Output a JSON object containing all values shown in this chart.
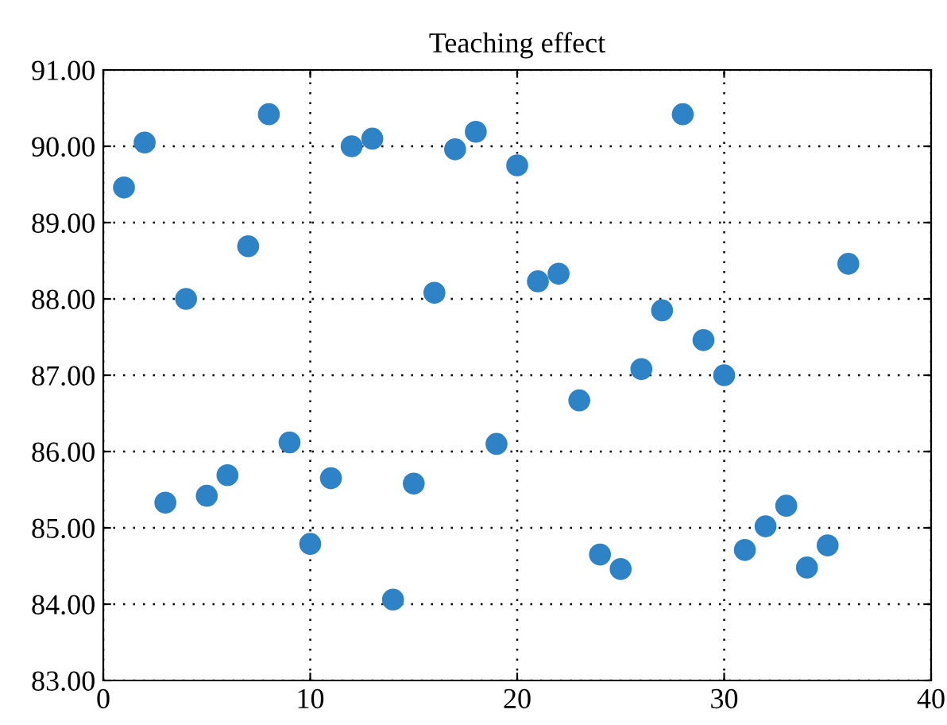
{
  "chart_data": {
    "type": "scatter",
    "title": "Teaching effect",
    "x": [
      1,
      2,
      3,
      4,
      5,
      6,
      7,
      8,
      9,
      10,
      11,
      12,
      13,
      14,
      15,
      16,
      17,
      18,
      19,
      20,
      21,
      22,
      23,
      24,
      25,
      26,
      27,
      28,
      29,
      30,
      31,
      32,
      33,
      34,
      35,
      36
    ],
    "series": [
      {
        "color": "#2e83c6",
        "values": [
          89.46,
          90.05,
          85.33,
          88.0,
          85.42,
          85.69,
          88.69,
          90.42,
          86.12,
          84.79,
          85.65,
          90.0,
          90.1,
          84.06,
          85.58,
          88.08,
          89.96,
          90.19,
          86.1,
          89.75,
          88.23,
          88.33,
          86.67,
          84.65,
          84.46,
          87.08,
          87.85,
          90.42,
          87.46,
          87.0,
          84.71,
          85.02,
          85.29,
          84.48,
          84.77,
          88.46
        ]
      }
    ],
    "xlim": [
      0,
      40
    ],
    "xticks": [
      0,
      10,
      20,
      30,
      40
    ],
    "ylim": [
      83,
      91
    ],
    "yticks": [
      {
        "value": 83,
        "label": "83.00"
      },
      {
        "value": 84,
        "label": "84.00"
      },
      {
        "value": 85,
        "label": "85.00"
      },
      {
        "value": 86,
        "label": "86.00"
      },
      {
        "value": 87,
        "label": "87.00"
      },
      {
        "value": 88,
        "label": "88.00"
      },
      {
        "value": 89,
        "label": "89.00"
      },
      {
        "value": 90,
        "label": "90.00"
      },
      {
        "value": 91,
        "label": "91.00"
      }
    ],
    "grid": true,
    "marker": "circle"
  }
}
